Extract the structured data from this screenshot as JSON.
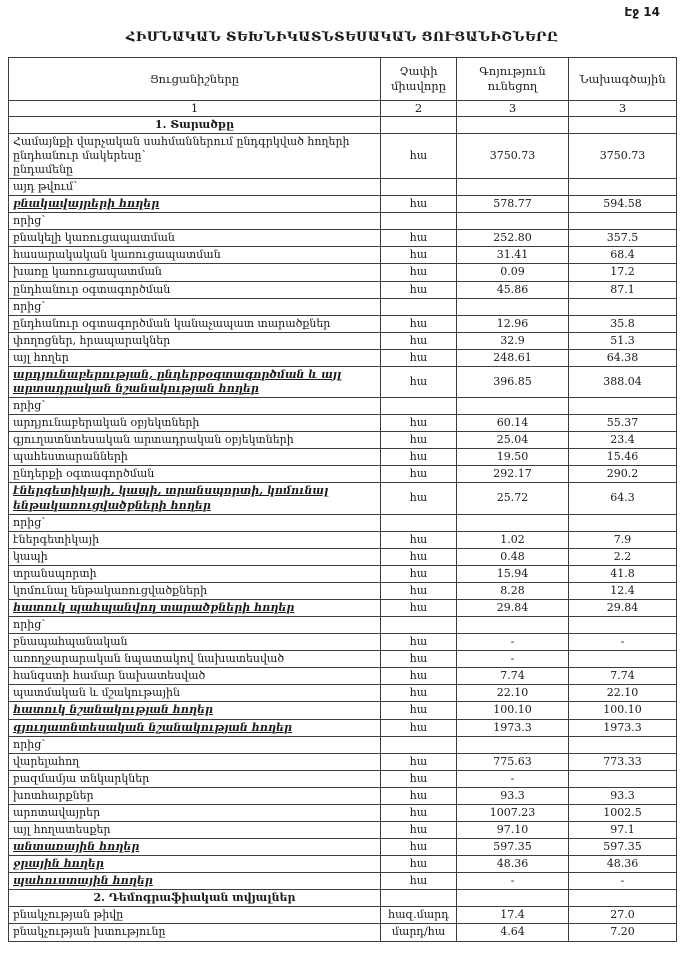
{
  "page": {
    "page_label": "Էջ 14",
    "title": "ՀԻՄՆԱԿԱՆ ՏԵԽՆԻԿԱՏՆՏԵՍԱԿԱՆ ՑՈՒՑԱՆԻՇՆԵՐԸ"
  },
  "table": {
    "headers": [
      "Ցուցանիշները",
      "Չափի միավորը",
      "Գոյություն ունեցող",
      "Նախագծային"
    ],
    "column_numbers": [
      "1",
      "2",
      "3",
      "3"
    ],
    "rows": [
      {
        "style": "section",
        "label": "1. Տարածքը",
        "unit": "",
        "existing": "",
        "projected": ""
      },
      {
        "style": "plain",
        "label": "Համայնքի վարչական սահմաններում ընդգրկված հողերի ընդհանուր մակերեսը՝\nընդամենը",
        "unit": "հա",
        "existing": "3750.73",
        "projected": "3750.73"
      },
      {
        "style": "plain",
        "label": "այդ թվում՝",
        "unit": "",
        "existing": "",
        "projected": ""
      },
      {
        "style": "em",
        "label": "բնակավայրերի հողեր",
        "unit": "հա",
        "existing": "578.77",
        "projected": "594.58"
      },
      {
        "style": "plain",
        "label": "որից՝",
        "unit": "",
        "existing": "",
        "projected": ""
      },
      {
        "style": "plain",
        "label": "բնակելի կառուցապատման",
        "unit": "հա",
        "existing": "252.80",
        "projected": "357.5"
      },
      {
        "style": "plain",
        "label": "հասարակական կառուցապատման",
        "unit": "հա",
        "existing": "31.41",
        "projected": "68.4"
      },
      {
        "style": "plain",
        "label": "խառը կառուցապատման",
        "unit": "հա",
        "existing": "0.09",
        "projected": "17.2"
      },
      {
        "style": "plain",
        "label": "ընդհանուր օգտագործման",
        "unit": "հա",
        "existing": "45.86",
        "projected": "87.1"
      },
      {
        "style": "plain",
        "label": "որից՝",
        "unit": "",
        "existing": "",
        "projected": ""
      },
      {
        "style": "plain",
        "label": "ընդհանուր օգտագործման կանաչապատ տարածքներ",
        "unit": "հա",
        "existing": "12.96",
        "projected": "35.8"
      },
      {
        "style": "plain",
        "label": "փողոցներ, հրապարակներ",
        "unit": "հա",
        "existing": "32.9",
        "projected": "51.3"
      },
      {
        "style": "plain",
        "label": "այլ հողեր",
        "unit": "հա",
        "existing": "248.61",
        "projected": "64.38"
      },
      {
        "style": "em",
        "label": "արդյունաբերության, ընդերքօգտագործման և այլ արտադրական նշանակության հողեր",
        "unit": "հա",
        "existing": "396.85",
        "projected": "388.04"
      },
      {
        "style": "plain",
        "label": "որից՝",
        "unit": "",
        "existing": "",
        "projected": ""
      },
      {
        "style": "plain",
        "label": "արդյունաբերական օբյեկտների",
        "unit": "հա",
        "existing": "60.14",
        "projected": "55.37"
      },
      {
        "style": "plain",
        "label": "գյուղատնտեսական արտադրական օբյեկտների",
        "unit": "հա",
        "existing": "25.04",
        "projected": "23.4"
      },
      {
        "style": "plain",
        "label": "պահեստարանների",
        "unit": "հա",
        "existing": "19.50",
        "projected": "15.46"
      },
      {
        "style": "plain",
        "label": "ընդերքի օգտագործման",
        "unit": "հա",
        "existing": "292.17",
        "projected": "290.2"
      },
      {
        "style": "em",
        "label": "էներգետիկայի, կապի, տրանսպորտի, կոմունալ ենթակառուցվածքների հողեր",
        "unit": "հա",
        "existing": "25.72",
        "projected": "64.3"
      },
      {
        "style": "plain",
        "label": "որից՝",
        "unit": "",
        "existing": "",
        "projected": ""
      },
      {
        "style": "plain",
        "label": "էներգետիկայի",
        "unit": "հա",
        "existing": "1.02",
        "projected": "7.9"
      },
      {
        "style": "plain",
        "label": "կապի",
        "unit": "հա",
        "existing": "0.48",
        "projected": "2.2"
      },
      {
        "style": "plain",
        "label": "տրանսպորտի",
        "unit": "հա",
        "existing": "15.94",
        "projected": "41.8"
      },
      {
        "style": "plain",
        "label": "կոմունալ ենթակառուցվածքների",
        "unit": "հա",
        "existing": "8.28",
        "projected": "12.4"
      },
      {
        "style": "em",
        "label": "հատուկ պահպանվող տարածքների հողեր",
        "unit": "հա",
        "existing": "29.84",
        "projected": "29.84"
      },
      {
        "style": "plain",
        "label": "որից՝",
        "unit": "",
        "existing": "",
        "projected": ""
      },
      {
        "style": "plain",
        "label": "բնապահպանական",
        "unit": "հա",
        "existing": "-",
        "projected": "-"
      },
      {
        "style": "plain",
        "label": "առողջարարական նպատակով նախատեսված",
        "unit": "հա",
        "existing": "-",
        "projected": ""
      },
      {
        "style": "plain",
        "label": "հանգստի համար նախատեսված",
        "unit": "հա",
        "existing": "7.74",
        "projected": "7.74"
      },
      {
        "style": "plain",
        "label": "պատմական և մշակութային",
        "unit": "հա",
        "existing": "22.10",
        "projected": "22.10"
      },
      {
        "style": "em",
        "label": "հատուկ նշանակության հողեր",
        "unit": "հա",
        "existing": "100.10",
        "projected": "100.10"
      },
      {
        "style": "em",
        "label": "գյուղատնտեսական նշանակության հողեր",
        "unit": "հա",
        "existing": "1973.3",
        "projected": "1973.3"
      },
      {
        "style": "plain",
        "label": "որից՝",
        "unit": "",
        "existing": "",
        "projected": ""
      },
      {
        "style": "plain",
        "label": "վարելահող",
        "unit": "հա",
        "existing": "775.63",
        "projected": "773.33"
      },
      {
        "style": "plain",
        "label": "բազմամյա տնկարկներ",
        "unit": "հա",
        "existing": "-",
        "projected": ""
      },
      {
        "style": "plain",
        "label": "խոտհարքներ",
        "unit": "հա",
        "existing": "93.3",
        "projected": "93.3"
      },
      {
        "style": "plain",
        "label": "արոտավայրեր",
        "unit": "հա",
        "existing": "1007.23",
        "projected": "1002.5"
      },
      {
        "style": "plain",
        "label": "այլ հողատեսքեր",
        "unit": "հա",
        "existing": "97.10",
        "projected": "97.1"
      },
      {
        "style": "em",
        "label": "անտառային հողեր",
        "unit": "հա",
        "existing": "597.35",
        "projected": "597.35"
      },
      {
        "style": "em",
        "label": "ջրային հողեր",
        "unit": "հա",
        "existing": "48.36",
        "projected": "48.36"
      },
      {
        "style": "em",
        "label": "պահուստային հողեր",
        "unit": "հա",
        "existing": "-",
        "projected": "-"
      },
      {
        "style": "section",
        "label": "2. Դեմոգրաֆիական տվյալներ",
        "unit": "",
        "existing": "",
        "projected": ""
      },
      {
        "style": "plain",
        "label": "բնակչության թիվը",
        "unit": "հազ.մարդ",
        "existing": "17.4",
        "projected": "27.0"
      },
      {
        "style": "plain",
        "label": "բնակչության խտությունը",
        "unit": "մարդ/հա",
        "existing": "4.64",
        "projected": "7.20"
      }
    ]
  }
}
